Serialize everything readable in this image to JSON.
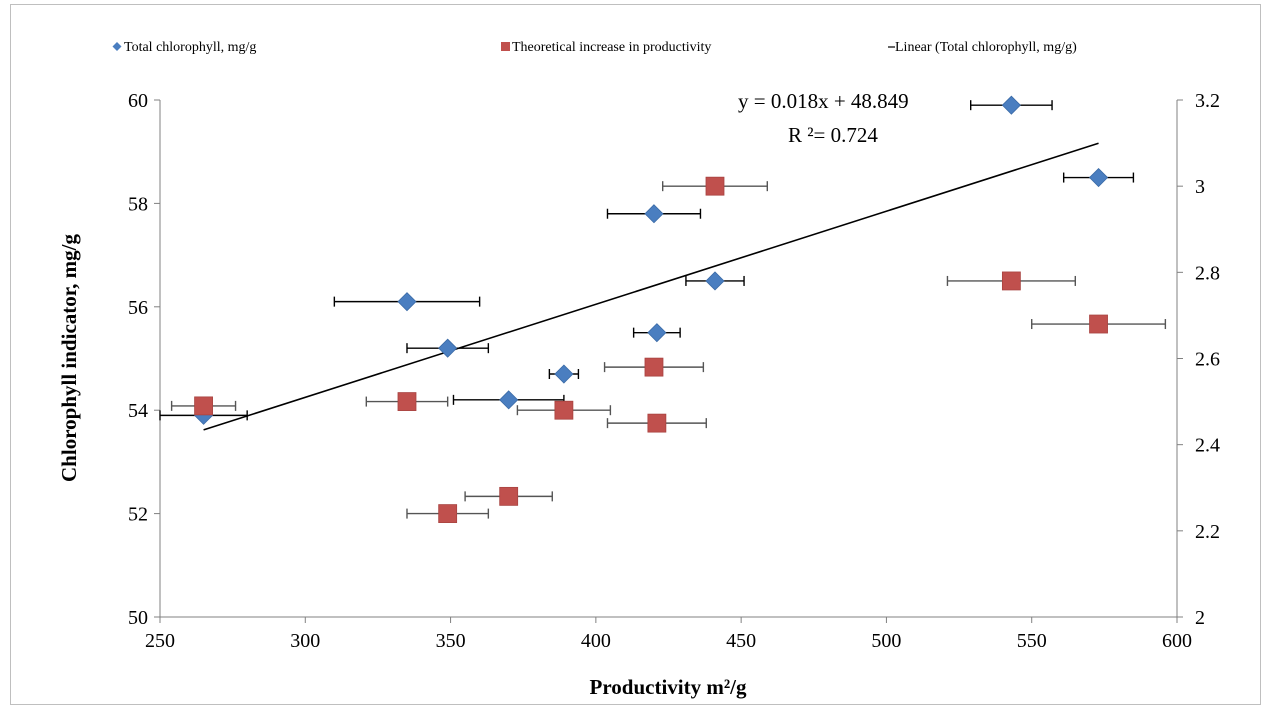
{
  "chart_data": {
    "type": "scatter",
    "xlabel": "Productivity m²/g",
    "ylabel": "Chlorophyll indicator, mg/g",
    "xlim": [
      250,
      600
    ],
    "ylim": [
      50,
      60
    ],
    "y2lim": [
      2,
      3.2
    ],
    "x_ticks": [
      "250",
      "300",
      "350",
      "400",
      "450",
      "500",
      "550",
      "600"
    ],
    "y_ticks": [
      "50",
      "52",
      "54",
      "56",
      "58",
      "60"
    ],
    "y2_ticks": [
      "2",
      "2.2",
      "2.4",
      "2.6",
      "2.8",
      "3",
      "3.2"
    ],
    "grid": false,
    "legend_position": "top",
    "legend": [
      "Total chlorophyll, mg/g",
      "Theoretical increase in productivity",
      "Linear (Total chlorophyll, mg/g)"
    ],
    "series": [
      {
        "name": "Total chlorophyll, mg/g",
        "marker": "diamond",
        "color": "#4A7EC0",
        "axis": "left",
        "points": [
          {
            "x": 265,
            "y": 53.9,
            "xerr": 15
          },
          {
            "x": 335,
            "y": 56.1,
            "xerr": 25
          },
          {
            "x": 349,
            "y": 55.2,
            "xerr": 14
          },
          {
            "x": 370,
            "y": 54.2,
            "xerr": 19
          },
          {
            "x": 389,
            "y": 54.7,
            "xerr": 5
          },
          {
            "x": 420,
            "y": 57.8,
            "xerr": 16
          },
          {
            "x": 421,
            "y": 55.5,
            "xerr": 8
          },
          {
            "x": 441,
            "y": 56.5,
            "xerr": 10
          },
          {
            "x": 543,
            "y": 59.9,
            "xerr": 14
          },
          {
            "x": 573,
            "y": 58.5,
            "xerr": 12
          }
        ]
      },
      {
        "name": "Theoretical increase in productivity",
        "marker": "square",
        "color": "#C0504D",
        "axis": "right",
        "points": [
          {
            "x": 265,
            "y": 2.49,
            "xerr": 11
          },
          {
            "x": 335,
            "y": 2.5,
            "xerr": 14
          },
          {
            "x": 349,
            "y": 2.24,
            "xerr": 14
          },
          {
            "x": 370,
            "y": 2.28,
            "xerr": 15
          },
          {
            "x": 389,
            "y": 2.48,
            "xerr": 16
          },
          {
            "x": 420,
            "y": 2.58,
            "xerr": 17
          },
          {
            "x": 421,
            "y": 2.45,
            "xerr": 17
          },
          {
            "x": 441,
            "y": 3.0,
            "xerr": 18
          },
          {
            "x": 543,
            "y": 2.78,
            "xerr": 22
          },
          {
            "x": 573,
            "y": 2.68,
            "xerr": 23
          }
        ]
      }
    ],
    "trendline": {
      "name": "Linear (Total chlorophyll, mg/g)",
      "slope": 0.018,
      "intercept": 48.849,
      "x_range": [
        265,
        573
      ],
      "color": "#000000"
    },
    "annotations": {
      "equation": "y = 0.018x + 48.849",
      "r_squared": "R ²= 0.724"
    }
  }
}
